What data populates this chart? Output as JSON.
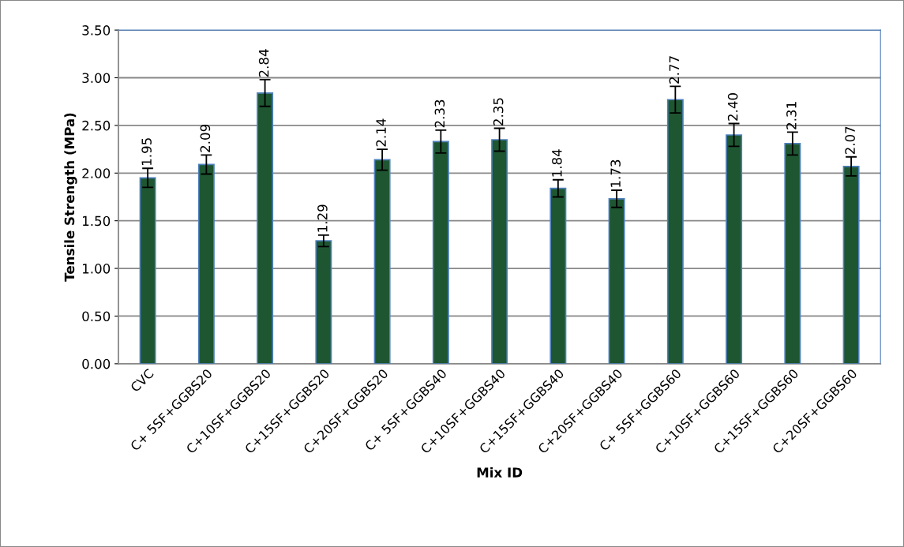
{
  "chart_data": {
    "type": "bar",
    "xlabel": "Mix ID",
    "ylabel": "Tensile Strength (MPa)",
    "categories": [
      "CVC",
      "C+ 5SF+GGBS20",
      "C+10SF+GGBS20",
      "C+15SF+GGBS20",
      "C+20SF+GGBS20",
      "C+ 5SF+GGBS40",
      "C+10SF+GGBS40",
      "C+15SF+GGBS40",
      "C+20SF+GGBS40",
      "C+ 5SF+GGBS60",
      "C+10SF+GGBS60",
      "C+15SF+GGBS60",
      "C+20SF+GGBS60"
    ],
    "values": [
      1.95,
      2.09,
      2.84,
      1.29,
      2.14,
      2.33,
      2.35,
      1.84,
      1.73,
      2.77,
      2.4,
      2.31,
      2.07
    ],
    "value_labels": [
      "1.95",
      "2.09",
      "2.84",
      "1.29",
      "2.14",
      "2.33",
      "2.35",
      "1.84",
      "1.73",
      "2.77",
      "2.40",
      "2.31",
      "2.07"
    ],
    "errors": [
      0.1,
      0.1,
      0.14,
      0.06,
      0.11,
      0.12,
      0.12,
      0.09,
      0.09,
      0.14,
      0.12,
      0.12,
      0.1
    ],
    "color": "#1e5631",
    "ylim": [
      0,
      3.5
    ],
    "yticks": [
      {
        "value": 0,
        "label": "0.00"
      },
      {
        "value": 0.5,
        "label": "0.50"
      },
      {
        "value": 1,
        "label": "1.00"
      },
      {
        "value": 1.5,
        "label": "1.50"
      },
      {
        "value": 2,
        "label": "2.00"
      },
      {
        "value": 2.5,
        "label": "2.50"
      },
      {
        "value": 3,
        "label": "3.00"
      },
      {
        "value": 3.5,
        "label": "3.50"
      }
    ],
    "grid": "y",
    "legend": false
  }
}
